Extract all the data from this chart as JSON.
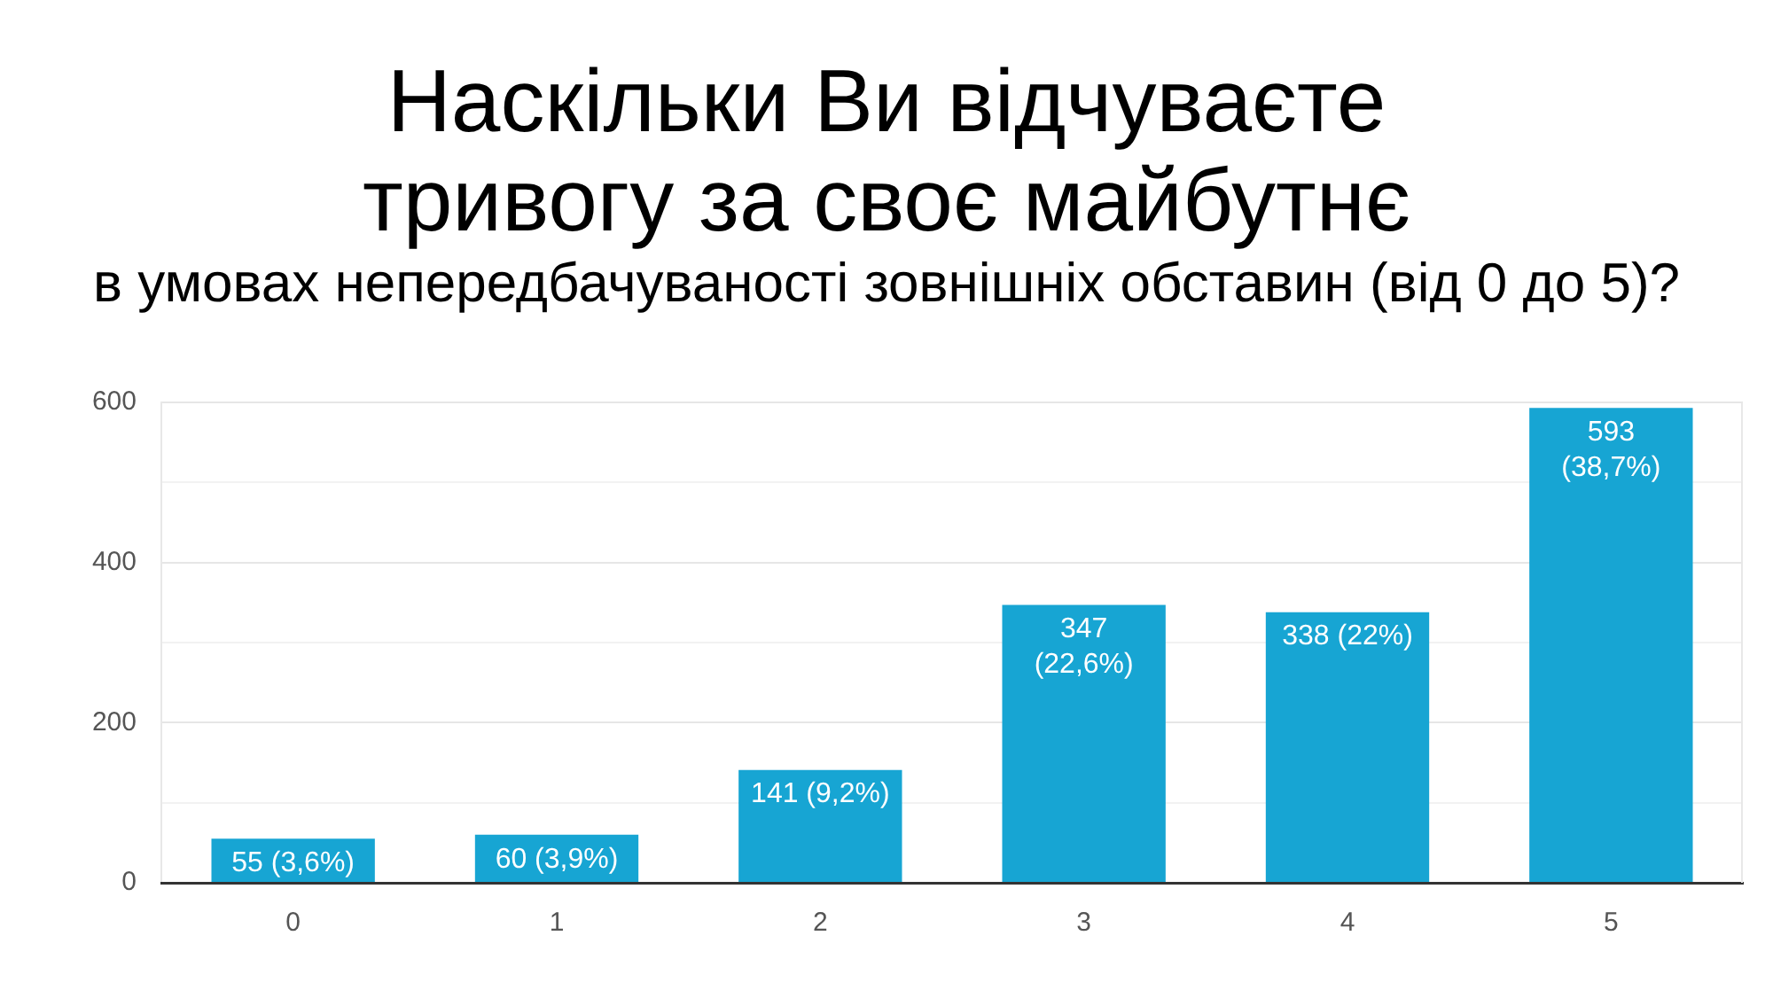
{
  "chart_data": {
    "type": "bar",
    "title": "Наскільки Ви відчуваєте тривогу за своє майбутнє",
    "subtitle": "в умовах непередбачуваності зовнішніх обставин (від 0 до 5)?",
    "categories": [
      "0",
      "1",
      "2",
      "3",
      "4",
      "5"
    ],
    "values": [
      55,
      60,
      141,
      347,
      338,
      593
    ],
    "value_labels": [
      "55 (3,6%)",
      "60 (3,9%)",
      "141 (9,2%)",
      "347 (22,6%)",
      "338 (22%)",
      "593 (38,7%)"
    ],
    "color": "#17a5d3",
    "ylim": [
      0,
      600
    ],
    "yticks": [
      0,
      {
        "value": 100,
        "label": null
      },
      200,
      {
        "value": 300,
        "label": null
      },
      400,
      {
        "value": 500,
        "label": null
      },
      600
    ],
    "grid": "y"
  }
}
